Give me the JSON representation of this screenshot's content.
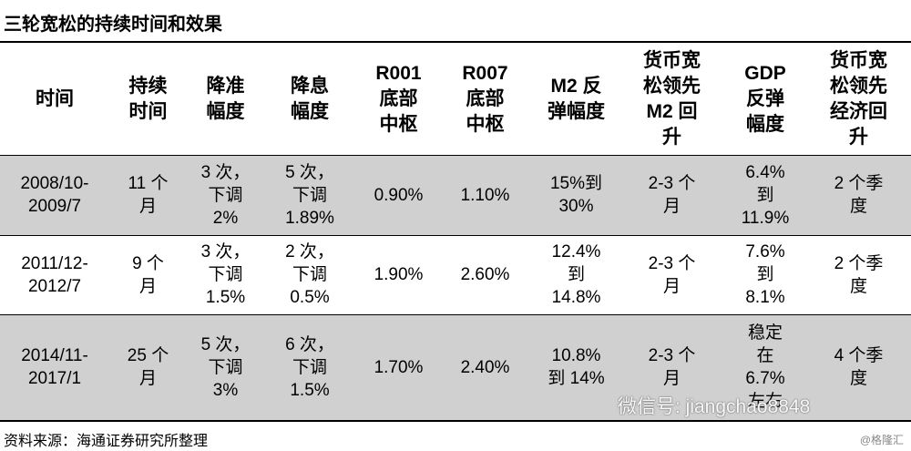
{
  "title": "三轮宽松的持续时间和效果",
  "table": {
    "header": [
      [
        "时间"
      ],
      [
        "持续",
        "时间"
      ],
      [
        "降准",
        "幅度"
      ],
      [
        "降息",
        "幅度"
      ],
      [
        "R001",
        "底部",
        "中枢"
      ],
      [
        "R007",
        "底部",
        "中枢"
      ],
      [
        "M2 反",
        "弹幅度"
      ],
      [
        "货币宽",
        "松领先",
        "M2 回",
        "升"
      ],
      [
        "GDP",
        "反弹",
        "幅度"
      ],
      [
        "货币宽",
        "松领先",
        "经济回",
        "升"
      ]
    ],
    "rows": [
      [
        [
          "2008/10-",
          "2009/7"
        ],
        [
          "11 个",
          "月"
        ],
        [
          "3 次，",
          "下调",
          "2%"
        ],
        [
          "5 次，",
          "下调",
          "1.89%"
        ],
        [
          "0.90%"
        ],
        [
          "1.10%"
        ],
        [
          "15%到",
          "30%"
        ],
        [
          "2-3 个",
          "月"
        ],
        [
          "6.4%",
          "到",
          "11.9%"
        ],
        [
          "2 个季",
          "度"
        ]
      ],
      [
        [
          "2011/12-",
          "2012/7"
        ],
        [
          "9 个",
          "月"
        ],
        [
          "3 次，",
          "下调",
          "1.5%"
        ],
        [
          "2 次，",
          "下调",
          "0.5%"
        ],
        [
          "1.90%"
        ],
        [
          "2.60%"
        ],
        [
          "12.4%",
          "到",
          "14.8%"
        ],
        [
          "2-3 个",
          "月"
        ],
        [
          "7.6%",
          "到",
          "8.1%"
        ],
        [
          "2 个季",
          "度"
        ]
      ],
      [
        [
          "2014/11-",
          "2017/1"
        ],
        [
          "25 个",
          "月"
        ],
        [
          "5 次，",
          "下调",
          "3%"
        ],
        [
          "6 次，",
          "下调",
          "1.5%"
        ],
        [
          "1.70%"
        ],
        [
          "2.40%"
        ],
        [
          "10.8%",
          "到 14%"
        ],
        [
          "2-3 个",
          "月"
        ],
        [
          "稳定",
          "在",
          "6.7%",
          "左右"
        ],
        [
          "4 个季",
          "度"
        ]
      ]
    ]
  },
  "source": "资料来源：海通证券研究所整理",
  "watermark": "微信号: jiangchao8848",
  "credit": "@格隆汇"
}
